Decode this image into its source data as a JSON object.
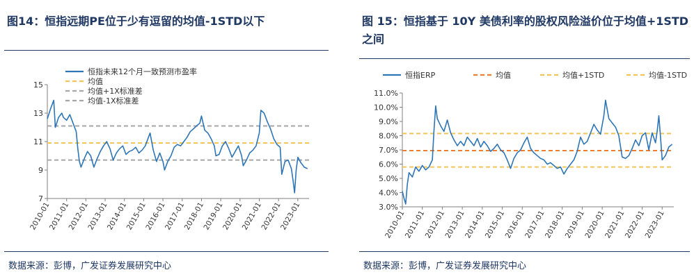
{
  "left": {
    "title": "图14：恒指远期PE位于少有逗留的均值-1STD以下",
    "source": "数据来源：彭博，广发证券发展研究中心",
    "chart_data": {
      "type": "line",
      "x_ticks": [
        "2010-01",
        "2011-01",
        "2012-01",
        "2013-01",
        "2014-01",
        "2015-01",
        "2016-01",
        "2017-01",
        "2018-01",
        "2019-01",
        "2020-01",
        "2021-01",
        "2022-01",
        "2023-01"
      ],
      "ylim": [
        7,
        15
      ],
      "y_ticks": [
        7,
        9,
        11,
        13,
        15
      ],
      "grid": false,
      "legend_position": "top-left",
      "series": [
        {
          "name": "恒指未来12个月一致预测市盈率",
          "color": "#2e75b6",
          "style": "solid",
          "dates": [
            "2010-01",
            "2010-03",
            "2010-05",
            "2010-06",
            "2010-08",
            "2010-10",
            "2010-11",
            "2011-01",
            "2011-03",
            "2011-05",
            "2011-07",
            "2011-08",
            "2011-09",
            "2011-10",
            "2011-12",
            "2012-02",
            "2012-04",
            "2012-06",
            "2012-08",
            "2012-10",
            "2012-12",
            "2013-02",
            "2013-04",
            "2013-06",
            "2013-08",
            "2013-10",
            "2013-12",
            "2014-02",
            "2014-04",
            "2014-06",
            "2014-08",
            "2014-10",
            "2014-12",
            "2015-02",
            "2015-04",
            "2015-05",
            "2015-07",
            "2015-09",
            "2015-11",
            "2016-01",
            "2016-02",
            "2016-04",
            "2016-06",
            "2016-08",
            "2016-10",
            "2016-12",
            "2017-02",
            "2017-04",
            "2017-06",
            "2017-08",
            "2017-10",
            "2017-12",
            "2018-01",
            "2018-03",
            "2018-05",
            "2018-07",
            "2018-09",
            "2018-10",
            "2018-12",
            "2019-02",
            "2019-04",
            "2019-06",
            "2019-08",
            "2019-10",
            "2019-12",
            "2020-02",
            "2020-03",
            "2020-05",
            "2020-07",
            "2020-09",
            "2020-11",
            "2021-01",
            "2021-02",
            "2021-04",
            "2021-06",
            "2021-08",
            "2021-10",
            "2021-12",
            "2022-02",
            "2022-03",
            "2022-05",
            "2022-07",
            "2022-09",
            "2022-10",
            "2022-11",
            "2022-12",
            "2023-01",
            "2023-03",
            "2023-05",
            "2023-07"
          ],
          "values": [
            12.6,
            13.3,
            13.9,
            12.0,
            12.7,
            13.0,
            12.7,
            12.5,
            12.9,
            12.3,
            11.7,
            10.5,
            9.6,
            9.2,
            9.8,
            10.3,
            10.0,
            9.2,
            9.8,
            10.3,
            10.7,
            11.0,
            10.5,
            9.7,
            10.2,
            10.5,
            10.7,
            10.1,
            10.3,
            10.4,
            10.6,
            10.2,
            10.4,
            10.7,
            11.3,
            11.6,
            10.4,
            9.6,
            10.2,
            9.6,
            9.0,
            9.6,
            10.0,
            10.6,
            10.8,
            10.7,
            11.0,
            11.3,
            11.7,
            11.9,
            12.1,
            12.3,
            12.8,
            11.8,
            11.6,
            11.2,
            10.7,
            10.0,
            10.1,
            10.7,
            11.0,
            10.5,
            9.9,
            10.3,
            10.7,
            10.0,
            9.3,
            9.7,
            10.2,
            10.4,
            10.7,
            11.6,
            13.2,
            13.0,
            12.4,
            11.9,
            11.2,
            10.8,
            10.6,
            8.7,
            9.6,
            9.7,
            9.1,
            8.3,
            7.4,
            9.0,
            9.9,
            9.5,
            9.2,
            9.1
          ]
        },
        {
          "name": "均值",
          "color": "#f2c45a",
          "style": "dashed",
          "value": 10.9
        },
        {
          "name": "均值+1X标准差",
          "color": "#a6a6a6",
          "style": "dashed",
          "value": 12.1
        },
        {
          "name": "均值-1X标准差",
          "color": "#a6a6a6",
          "style": "dashed",
          "value": 9.7
        }
      ]
    }
  },
  "right": {
    "title": "图 15：恒指基于 10Y 美债利率的股权风险溢价位于均值+1STD 之间",
    "source": "数据来源：彭博，广发证券发展研究中心",
    "chart_data": {
      "type": "line",
      "x_ticks": [
        "2010-01",
        "2011-01",
        "2012-01",
        "2013-01",
        "2014-01",
        "2015-01",
        "2016-01",
        "2017-01",
        "2018-01",
        "2019-01",
        "2020-01",
        "2021-01",
        "2022-01",
        "2023-01"
      ],
      "ylim": [
        3.0,
        11.0
      ],
      "y_ticks": [
        "3.0%",
        "4.0%",
        "5.0%",
        "6.0%",
        "7.0%",
        "8.0%",
        "9.0%",
        "10.0%",
        "11.0%"
      ],
      "grid": false,
      "legend_position": "top",
      "series": [
        {
          "name": "恒指ERP",
          "color": "#2e75b6",
          "style": "solid",
          "dates": [
            "2010-01",
            "2010-02",
            "2010-03",
            "2010-04",
            "2010-05",
            "2010-07",
            "2010-09",
            "2010-11",
            "2011-01",
            "2011-03",
            "2011-05",
            "2011-07",
            "2011-08",
            "2011-09",
            "2011-10",
            "2011-12",
            "2012-02",
            "2012-04",
            "2012-06",
            "2012-08",
            "2012-10",
            "2012-12",
            "2013-02",
            "2013-04",
            "2013-06",
            "2013-08",
            "2013-10",
            "2013-12",
            "2014-02",
            "2014-04",
            "2014-06",
            "2014-08",
            "2014-10",
            "2014-12",
            "2015-02",
            "2015-04",
            "2015-06",
            "2015-08",
            "2015-10",
            "2015-12",
            "2016-02",
            "2016-04",
            "2016-06",
            "2016-08",
            "2016-10",
            "2016-12",
            "2017-02",
            "2017-04",
            "2017-06",
            "2017-08",
            "2017-10",
            "2017-12",
            "2018-02",
            "2018-04",
            "2018-06",
            "2018-08",
            "2018-10",
            "2018-12",
            "2019-02",
            "2019-04",
            "2019-06",
            "2019-08",
            "2019-10",
            "2019-12",
            "2020-02",
            "2020-03",
            "2020-05",
            "2020-07",
            "2020-09",
            "2020-11",
            "2021-01",
            "2021-03",
            "2021-05",
            "2021-07",
            "2021-09",
            "2021-11",
            "2022-01",
            "2022-03",
            "2022-05",
            "2022-07",
            "2022-09",
            "2022-10",
            "2022-11",
            "2022-12",
            "2023-01",
            "2023-03",
            "2023-05",
            "2023-07"
          ],
          "values": [
            4.1,
            3.6,
            3.2,
            4.6,
            5.4,
            5.1,
            5.8,
            5.5,
            5.9,
            5.6,
            5.8,
            6.3,
            8.4,
            10.1,
            9.2,
            8.7,
            8.3,
            9.1,
            8.2,
            7.7,
            7.3,
            7.6,
            7.3,
            7.9,
            7.6,
            7.3,
            7.8,
            7.2,
            7.6,
            7.3,
            6.9,
            7.1,
            7.4,
            7.0,
            6.8,
            6.3,
            5.7,
            6.4,
            6.8,
            7.0,
            7.5,
            7.9,
            7.1,
            6.8,
            6.6,
            6.4,
            6.3,
            6.0,
            6.1,
            5.9,
            5.7,
            5.8,
            5.3,
            5.7,
            6.0,
            6.3,
            6.9,
            7.9,
            7.4,
            7.6,
            8.2,
            8.8,
            8.4,
            8.1,
            9.4,
            10.5,
            9.2,
            8.9,
            8.6,
            8.0,
            6.5,
            6.4,
            6.6,
            7.1,
            7.7,
            7.3,
            8.0,
            8.2,
            7.0,
            8.2,
            7.5,
            8.3,
            9.4,
            7.9,
            6.3,
            6.6,
            7.2,
            7.4
          ]
        },
        {
          "name": "均值",
          "color": "#ed7d31",
          "style": "dashed",
          "value": 6.95
        },
        {
          "name": "均值+1STD",
          "color": "#f2c45a",
          "style": "dashed",
          "value": 8.15
        },
        {
          "name": "均值-1STD",
          "color": "#f2c45a",
          "style": "dashed",
          "value": 5.8
        }
      ]
    }
  }
}
